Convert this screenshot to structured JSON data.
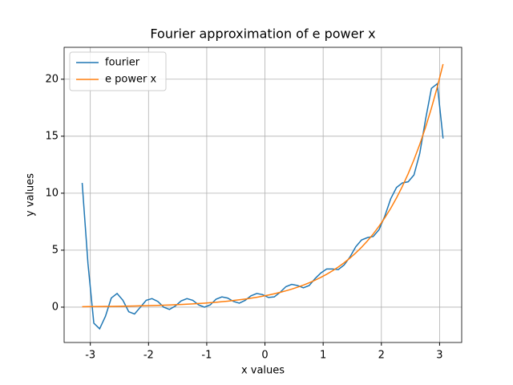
{
  "chart_data": {
    "type": "line",
    "title": "Fourier approximation of e power x",
    "x_label": "x values",
    "y_label": "y values",
    "x": [
      -3.14,
      -3.04,
      -2.94,
      -2.84,
      -2.74,
      -2.64,
      -2.54,
      -2.44,
      -2.34,
      -2.24,
      -2.14,
      -2.04,
      -1.94,
      -1.84,
      -1.74,
      -1.64,
      -1.54,
      -1.44,
      -1.34,
      -1.24,
      -1.14,
      -1.04,
      -0.94,
      -0.84,
      -0.74,
      -0.64,
      -0.54,
      -0.44,
      -0.34,
      -0.24,
      -0.14,
      -0.04,
      0.06,
      0.16,
      0.26,
      0.36,
      0.46,
      0.56,
      0.66,
      0.76,
      0.86,
      0.96,
      1.06,
      1.16,
      1.26,
      1.36,
      1.46,
      1.56,
      1.66,
      1.76,
      1.86,
      1.96,
      2.06,
      2.16,
      2.26,
      2.36,
      2.46,
      2.56,
      2.66,
      2.76,
      2.86,
      2.96,
      3.06
    ],
    "series": [
      {
        "name": "fourier",
        "color": "#1f77b4",
        "values": [
          10.9,
          3.8,
          -1.4,
          -1.9,
          -0.8,
          0.8,
          1.2,
          0.6,
          -0.4,
          -0.6,
          0.0,
          0.6,
          0.75,
          0.5,
          0.0,
          -0.2,
          0.1,
          0.55,
          0.75,
          0.6,
          0.2,
          0.0,
          0.2,
          0.7,
          0.9,
          0.8,
          0.5,
          0.35,
          0.6,
          1.0,
          1.2,
          1.1,
          0.85,
          0.9,
          1.3,
          1.8,
          2.0,
          1.9,
          1.7,
          1.9,
          2.5,
          3.0,
          3.35,
          3.35,
          3.3,
          3.7,
          4.4,
          5.3,
          5.9,
          6.1,
          6.2,
          6.8,
          8.0,
          9.5,
          10.5,
          10.9,
          11.0,
          11.6,
          13.5,
          16.5,
          19.2,
          19.6,
          14.8
        ]
      },
      {
        "name": "e power x",
        "color": "#ff7f0e",
        "values": [
          0.043,
          0.048,
          0.053,
          0.058,
          0.065,
          0.071,
          0.079,
          0.087,
          0.096,
          0.106,
          0.118,
          0.13,
          0.144,
          0.159,
          0.176,
          0.194,
          0.214,
          0.237,
          0.262,
          0.289,
          0.32,
          0.353,
          0.391,
          0.432,
          0.477,
          0.527,
          0.583,
          0.644,
          0.712,
          0.787,
          0.869,
          0.961,
          1.062,
          1.174,
          1.297,
          1.433,
          1.584,
          1.751,
          1.935,
          2.138,
          2.363,
          2.612,
          2.886,
          3.19,
          3.525,
          3.896,
          4.306,
          4.759,
          5.259,
          5.812,
          6.424,
          7.099,
          7.846,
          8.671,
          9.583,
          10.591,
          11.705,
          12.936,
          14.296,
          15.8,
          17.462,
          19.298,
          21.328
        ]
      }
    ],
    "xlim": [
      -3.45,
      3.38
    ],
    "ylim": [
      -3.1,
      22.8
    ],
    "xticks": [
      -3,
      -2,
      -1,
      0,
      1,
      2,
      3
    ],
    "yticks": [
      0,
      5,
      10,
      15,
      20
    ],
    "grid": true,
    "legend": "upper left"
  }
}
